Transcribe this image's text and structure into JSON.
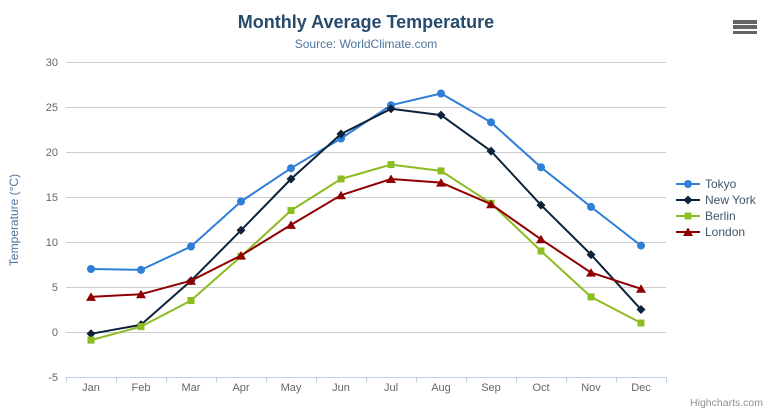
{
  "chart_data": {
    "type": "line",
    "title": "Monthly Average Temperature",
    "subtitle": "Source: WorldClimate.com",
    "xlabel": "",
    "ylabel": "Temperature (°C)",
    "ylim": [
      -5,
      30
    ],
    "ytick_step": 5,
    "grid": true,
    "legend_position": "right",
    "categories": [
      "Jan",
      "Feb",
      "Mar",
      "Apr",
      "May",
      "Jun",
      "Jul",
      "Aug",
      "Sep",
      "Oct",
      "Nov",
      "Dec"
    ],
    "series": [
      {
        "name": "Tokyo",
        "color": "#2f7ed8",
        "marker": "circle",
        "values": [
          7.0,
          6.9,
          9.5,
          14.5,
          18.2,
          21.5,
          25.2,
          26.5,
          23.3,
          18.3,
          13.9,
          9.6
        ]
      },
      {
        "name": "New York",
        "color": "#0d233a",
        "marker": "diamond",
        "values": [
          -0.2,
          0.8,
          5.7,
          11.3,
          17.0,
          22.0,
          24.8,
          24.1,
          20.1,
          14.1,
          8.6,
          2.5
        ]
      },
      {
        "name": "Berlin",
        "color": "#8bbc21",
        "marker": "square",
        "values": [
          -0.9,
          0.6,
          3.5,
          8.4,
          13.5,
          17.0,
          18.6,
          17.9,
          14.3,
          9.0,
          3.9,
          1.0
        ]
      },
      {
        "name": "London",
        "color": "#910000",
        "marker": "triangle",
        "values": [
          3.9,
          4.2,
          5.7,
          8.5,
          11.9,
          15.2,
          17.0,
          16.6,
          14.2,
          10.3,
          6.6,
          4.8
        ]
      }
    ]
  },
  "credits": "Highcharts.com",
  "icons": {
    "menu": "hamburger-menu-icon"
  },
  "styles": {
    "grid_color": "#cccccc",
    "axis_line_color": "#c0d0e0",
    "tick_label_color": "#666666",
    "title_color": "#274b6d",
    "subtitle_color": "#4d759e",
    "legend_text_color": "#3e576f",
    "credit_color": "#909090"
  }
}
